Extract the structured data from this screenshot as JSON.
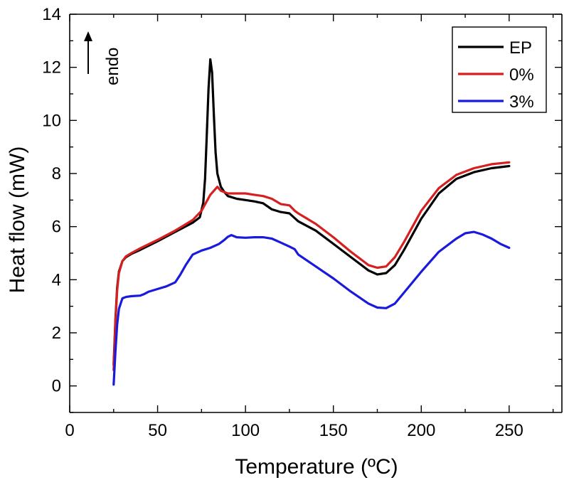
{
  "chart_data": {
    "type": "line",
    "title": "",
    "xlabel": "Temperature (ºC)",
    "ylabel": "Heat flow (mW)",
    "xlim": [
      0,
      280
    ],
    "ylim": [
      -1,
      14
    ],
    "xticks": [
      0,
      50,
      100,
      150,
      200,
      250
    ],
    "yticks": [
      0,
      2,
      4,
      6,
      8,
      10,
      12,
      14
    ],
    "legend_position": "top-right",
    "annotation": {
      "text": "endo",
      "arrow": "up"
    },
    "series": [
      {
        "name": "EP",
        "color": "#000000",
        "x": [
          25,
          26,
          27,
          28,
          30,
          32,
          35,
          40,
          50,
          60,
          70,
          74,
          76,
          77,
          78,
          79,
          80,
          81,
          82,
          83,
          84,
          86,
          88,
          90,
          95,
          100,
          105,
          110,
          115,
          120,
          125,
          130,
          140,
          150,
          160,
          170,
          175,
          180,
          185,
          190,
          200,
          210,
          220,
          230,
          240,
          250
        ],
        "y": [
          0.8,
          2.5,
          3.7,
          4.3,
          4.7,
          4.85,
          4.97,
          5.12,
          5.45,
          5.8,
          6.15,
          6.35,
          6.9,
          7.8,
          9.5,
          11.2,
          12.3,
          11.8,
          10.2,
          8.8,
          8.0,
          7.5,
          7.3,
          7.15,
          7.05,
          7.0,
          6.95,
          6.88,
          6.65,
          6.55,
          6.5,
          6.2,
          5.85,
          5.35,
          4.85,
          4.35,
          4.2,
          4.25,
          4.55,
          5.1,
          6.3,
          7.25,
          7.8,
          8.05,
          8.2,
          8.28
        ]
      },
      {
        "name": "0%",
        "color": "#d62020",
        "x": [
          25,
          26,
          27,
          28,
          30,
          32,
          35,
          40,
          50,
          60,
          70,
          75,
          80,
          84,
          86,
          90,
          95,
          100,
          105,
          110,
          115,
          120,
          125,
          128,
          130,
          140,
          150,
          160,
          170,
          175,
          180,
          185,
          190,
          200,
          210,
          220,
          230,
          240,
          250
        ],
        "y": [
          0.6,
          2.4,
          3.6,
          4.25,
          4.7,
          4.88,
          5.0,
          5.18,
          5.5,
          5.85,
          6.25,
          6.6,
          7.2,
          7.5,
          7.35,
          7.25,
          7.25,
          7.25,
          7.2,
          7.15,
          7.05,
          6.85,
          6.8,
          6.6,
          6.5,
          6.1,
          5.6,
          5.05,
          4.55,
          4.45,
          4.5,
          4.85,
          5.4,
          6.6,
          7.45,
          7.95,
          8.2,
          8.35,
          8.42
        ]
      },
      {
        "name": "3%",
        "color": "#1a1adc",
        "x": [
          25,
          26,
          27,
          28,
          30,
          32,
          35,
          40,
          42,
          45,
          50,
          55,
          60,
          63,
          66,
          70,
          75,
          80,
          85,
          88,
          90,
          92,
          95,
          100,
          105,
          110,
          115,
          120,
          125,
          128,
          130,
          140,
          150,
          160,
          170,
          175,
          180,
          185,
          190,
          200,
          210,
          220,
          225,
          230,
          235,
          240,
          245,
          250
        ],
        "y": [
          0.05,
          1.3,
          2.3,
          2.9,
          3.3,
          3.35,
          3.38,
          3.4,
          3.45,
          3.55,
          3.65,
          3.75,
          3.9,
          4.2,
          4.55,
          4.95,
          5.1,
          5.2,
          5.35,
          5.5,
          5.62,
          5.68,
          5.6,
          5.58,
          5.6,
          5.6,
          5.55,
          5.4,
          5.25,
          5.15,
          4.95,
          4.5,
          4.05,
          3.55,
          3.1,
          2.95,
          2.93,
          3.1,
          3.5,
          4.3,
          5.05,
          5.55,
          5.75,
          5.8,
          5.7,
          5.55,
          5.35,
          5.2
        ]
      }
    ]
  }
}
